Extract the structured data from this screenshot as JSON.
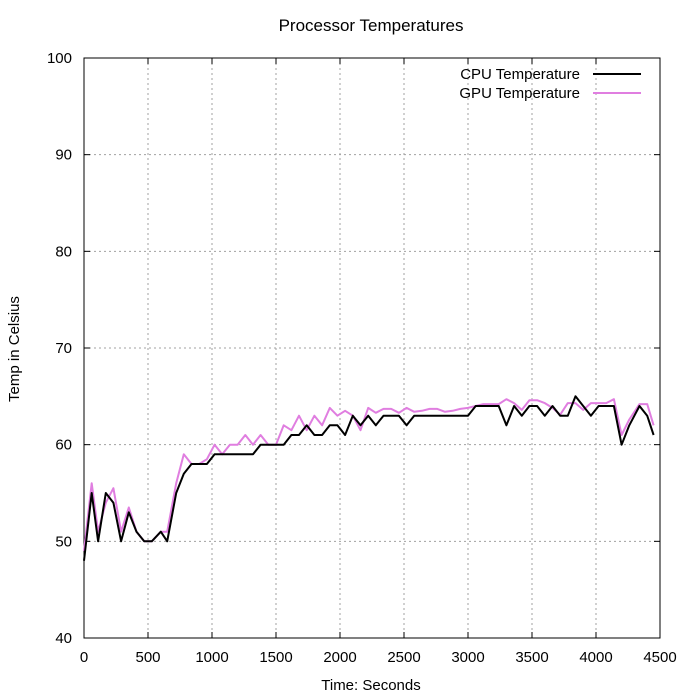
{
  "chart_data": {
    "type": "line",
    "title": "Processor Temperatures",
    "xlabel": "Time: Seconds",
    "ylabel": "Temp in Celsius",
    "xlim": [
      0,
      4500
    ],
    "ylim": [
      40,
      100
    ],
    "xticks": [
      "0",
      "500",
      "1000",
      "1500",
      "2000",
      "2500",
      "3000",
      "3500",
      "4000",
      "4500"
    ],
    "yticks": [
      "40",
      "50",
      "60",
      "70",
      "80",
      "90",
      "100"
    ],
    "grid": true,
    "legend_position": "top-right",
    "series": [
      {
        "name": "CPU Temperature",
        "color": "#000000",
        "points": [
          [
            0,
            48
          ],
          [
            60,
            55
          ],
          [
            110,
            50
          ],
          [
            170,
            55
          ],
          [
            230,
            54
          ],
          [
            290,
            50
          ],
          [
            350,
            53
          ],
          [
            410,
            51
          ],
          [
            470,
            50
          ],
          [
            530,
            50
          ],
          [
            600,
            51
          ],
          [
            650,
            50
          ],
          [
            720,
            55
          ],
          [
            780,
            57
          ],
          [
            840,
            58
          ],
          [
            900,
            58
          ],
          [
            960,
            58
          ],
          [
            1020,
            59
          ],
          [
            1080,
            59
          ],
          [
            1140,
            59
          ],
          [
            1200,
            59
          ],
          [
            1260,
            59
          ],
          [
            1320,
            59
          ],
          [
            1380,
            60
          ],
          [
            1440,
            60
          ],
          [
            1500,
            60
          ],
          [
            1560,
            60
          ],
          [
            1620,
            61
          ],
          [
            1680,
            61
          ],
          [
            1740,
            62
          ],
          [
            1800,
            61
          ],
          [
            1860,
            61
          ],
          [
            1920,
            62
          ],
          [
            1980,
            62
          ],
          [
            2040,
            61
          ],
          [
            2100,
            63
          ],
          [
            2160,
            62
          ],
          [
            2220,
            63
          ],
          [
            2280,
            62
          ],
          [
            2340,
            63
          ],
          [
            2400,
            63
          ],
          [
            2460,
            63
          ],
          [
            2520,
            62
          ],
          [
            2580,
            63
          ],
          [
            2640,
            63
          ],
          [
            2700,
            63
          ],
          [
            2760,
            63
          ],
          [
            2820,
            63
          ],
          [
            2880,
            63
          ],
          [
            2940,
            63
          ],
          [
            3000,
            63
          ],
          [
            3060,
            64
          ],
          [
            3120,
            64
          ],
          [
            3180,
            64
          ],
          [
            3240,
            64
          ],
          [
            3300,
            62
          ],
          [
            3360,
            64
          ],
          [
            3420,
            63
          ],
          [
            3480,
            64
          ],
          [
            3540,
            64
          ],
          [
            3600,
            63
          ],
          [
            3660,
            64
          ],
          [
            3720,
            63
          ],
          [
            3780,
            63
          ],
          [
            3840,
            65
          ],
          [
            3900,
            64
          ],
          [
            3960,
            63
          ],
          [
            4020,
            64
          ],
          [
            4080,
            64
          ],
          [
            4140,
            64
          ],
          [
            4200,
            60
          ],
          [
            4260,
            62
          ],
          [
            4340,
            64
          ],
          [
            4400,
            63
          ],
          [
            4450,
            61
          ]
        ]
      },
      {
        "name": "GPU Temperature",
        "color": "#e07ee0",
        "points": [
          [
            0,
            49
          ],
          [
            60,
            56
          ],
          [
            110,
            51
          ],
          [
            170,
            54
          ],
          [
            230,
            55.5
          ],
          [
            290,
            51
          ],
          [
            350,
            53.5
          ],
          [
            410,
            51
          ],
          [
            470,
            50
          ],
          [
            530,
            50
          ],
          [
            600,
            51
          ],
          [
            650,
            51
          ],
          [
            720,
            56
          ],
          [
            780,
            59
          ],
          [
            840,
            58
          ],
          [
            900,
            58
          ],
          [
            960,
            58.5
          ],
          [
            1020,
            60
          ],
          [
            1080,
            59
          ],
          [
            1140,
            60
          ],
          [
            1200,
            60
          ],
          [
            1260,
            61
          ],
          [
            1320,
            60
          ],
          [
            1380,
            61
          ],
          [
            1440,
            60
          ],
          [
            1500,
            60
          ],
          [
            1560,
            62
          ],
          [
            1620,
            61.5
          ],
          [
            1680,
            63
          ],
          [
            1740,
            61.5
          ],
          [
            1800,
            63
          ],
          [
            1860,
            62
          ],
          [
            1920,
            63.8
          ],
          [
            1980,
            63
          ],
          [
            2040,
            63.5
          ],
          [
            2100,
            63
          ],
          [
            2160,
            61.5
          ],
          [
            2220,
            63.8
          ],
          [
            2280,
            63.3
          ],
          [
            2340,
            63.7
          ],
          [
            2400,
            63.7
          ],
          [
            2460,
            63.3
          ],
          [
            2520,
            63.8
          ],
          [
            2580,
            63.4
          ],
          [
            2640,
            63.5
          ],
          [
            2700,
            63.7
          ],
          [
            2760,
            63.7
          ],
          [
            2820,
            63.4
          ],
          [
            2880,
            63.5
          ],
          [
            2940,
            63.7
          ],
          [
            3000,
            63.8
          ],
          [
            3060,
            64
          ],
          [
            3120,
            64.2
          ],
          [
            3180,
            64.2
          ],
          [
            3240,
            64.2
          ],
          [
            3300,
            64.7
          ],
          [
            3360,
            64.3
          ],
          [
            3420,
            63.6
          ],
          [
            3480,
            64.6
          ],
          [
            3540,
            64.6
          ],
          [
            3600,
            64.3
          ],
          [
            3660,
            63.8
          ],
          [
            3720,
            63.1
          ],
          [
            3780,
            64.3
          ],
          [
            3840,
            64.3
          ],
          [
            3900,
            63.6
          ],
          [
            3960,
            64.3
          ],
          [
            4020,
            64.3
          ],
          [
            4080,
            64.3
          ],
          [
            4140,
            64.7
          ],
          [
            4200,
            61
          ],
          [
            4260,
            62.6
          ],
          [
            4340,
            64.2
          ],
          [
            4400,
            64.2
          ],
          [
            4450,
            62
          ]
        ]
      }
    ]
  }
}
